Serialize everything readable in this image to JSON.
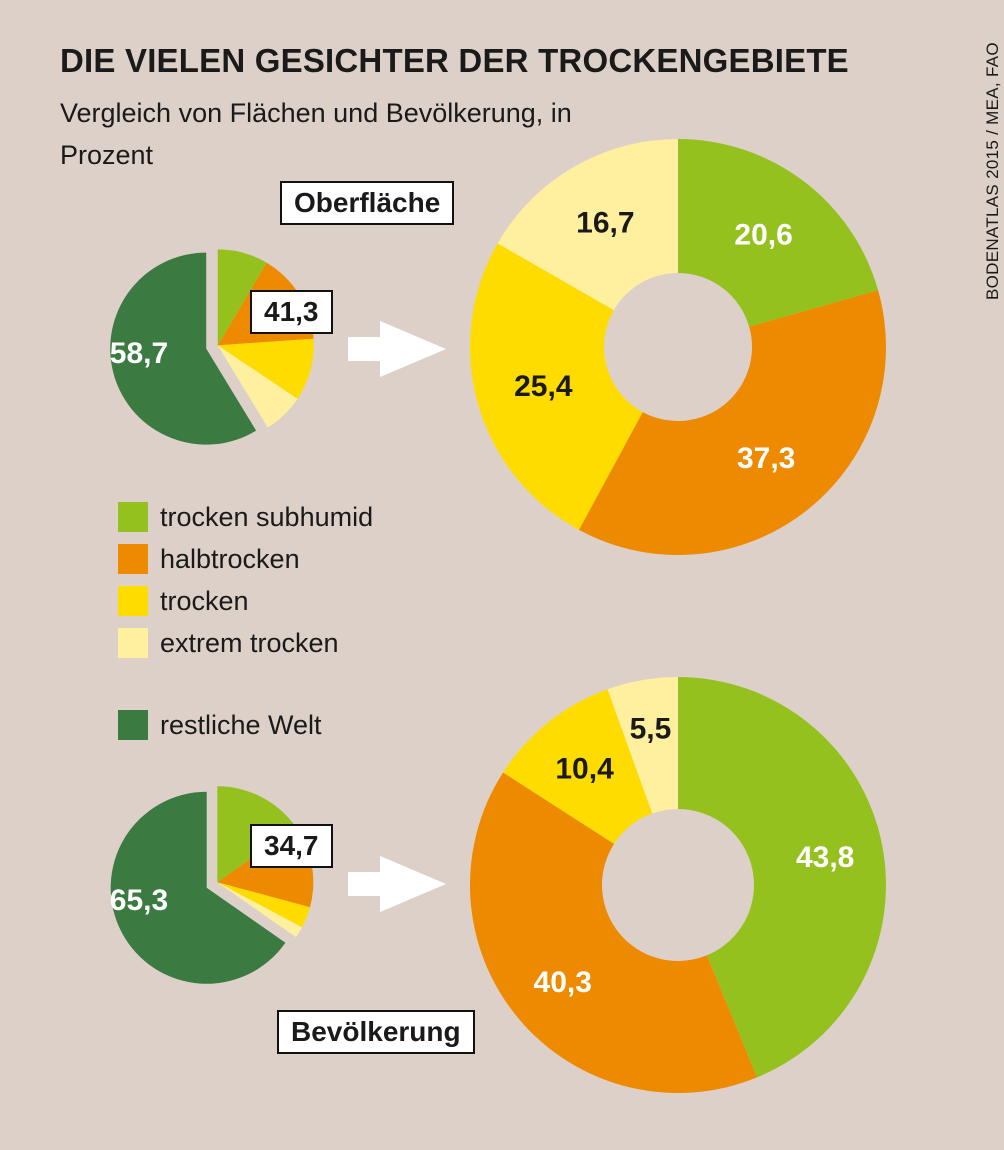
{
  "title": "DIE VIELEN GESICHTER DER TROCKENGEBIETE",
  "subtitle": "Vergleich von Flächen und Bevölkerung, in Prozent",
  "source": "BODENATLAS 2015 / MEA, FAO",
  "colors": {
    "trocken_subhumid": "#95c11f",
    "halbtrocken": "#ee8a00",
    "trocken": "#ffdc00",
    "extrem_trocken": "#fff0a0",
    "restliche_welt": "#3b7a40",
    "hole": "#ddd0c8"
  },
  "legend": [
    {
      "label": "trocken subhumid",
      "color": "#95c11f"
    },
    {
      "label": "halbtrocken",
      "color": "#ee8a00"
    },
    {
      "label": "trocken",
      "color": "#ffdc00"
    },
    {
      "label": "extrem trocken",
      "color": "#fff0a0"
    },
    {
      "label": "restliche Welt",
      "color": "#3b7a40"
    }
  ],
  "chart_data": [
    {
      "type": "pie",
      "title": "Oberfläche",
      "overview": {
        "dry_total": "41,3",
        "rest_label": "58,7",
        "slices": [
          {
            "name": "trocken subhumid",
            "value": 8.5
          },
          {
            "name": "halbtrocken",
            "value": 15.4
          },
          {
            "name": "trocken",
            "value": 10.5
          },
          {
            "name": "extrem trocken",
            "value": 6.9
          },
          {
            "name": "restliche Welt",
            "value": 58.7
          }
        ]
      },
      "breakdown": {
        "type": "donut",
        "slices": [
          {
            "name": "trocken subhumid",
            "value": 20.6,
            "label": "20,6"
          },
          {
            "name": "halbtrocken",
            "value": 37.3,
            "label": "37,3"
          },
          {
            "name": "trocken",
            "value": 25.4,
            "label": "25,4"
          },
          {
            "name": "extrem trocken",
            "value": 16.7,
            "label": "16,7"
          }
        ]
      }
    },
    {
      "type": "pie",
      "title": "Bevölkerung",
      "overview": {
        "dry_total": "34,7",
        "rest_label": "65,3",
        "slices": [
          {
            "name": "trocken subhumid",
            "value": 15.2
          },
          {
            "name": "halbtrocken",
            "value": 14.0
          },
          {
            "name": "trocken",
            "value": 3.6
          },
          {
            "name": "extrem trocken",
            "value": 1.9
          },
          {
            "name": "restliche Welt",
            "value": 65.3
          }
        ]
      },
      "breakdown": {
        "type": "donut",
        "slices": [
          {
            "name": "trocken subhumid",
            "value": 43.8,
            "label": "43,8"
          },
          {
            "name": "halbtrocken",
            "value": 40.3,
            "label": "40,3"
          },
          {
            "name": "trocken",
            "value": 10.4,
            "label": "10,4"
          },
          {
            "name": "extrem trocken",
            "value": 5.5,
            "label": "5,5"
          }
        ]
      }
    }
  ]
}
